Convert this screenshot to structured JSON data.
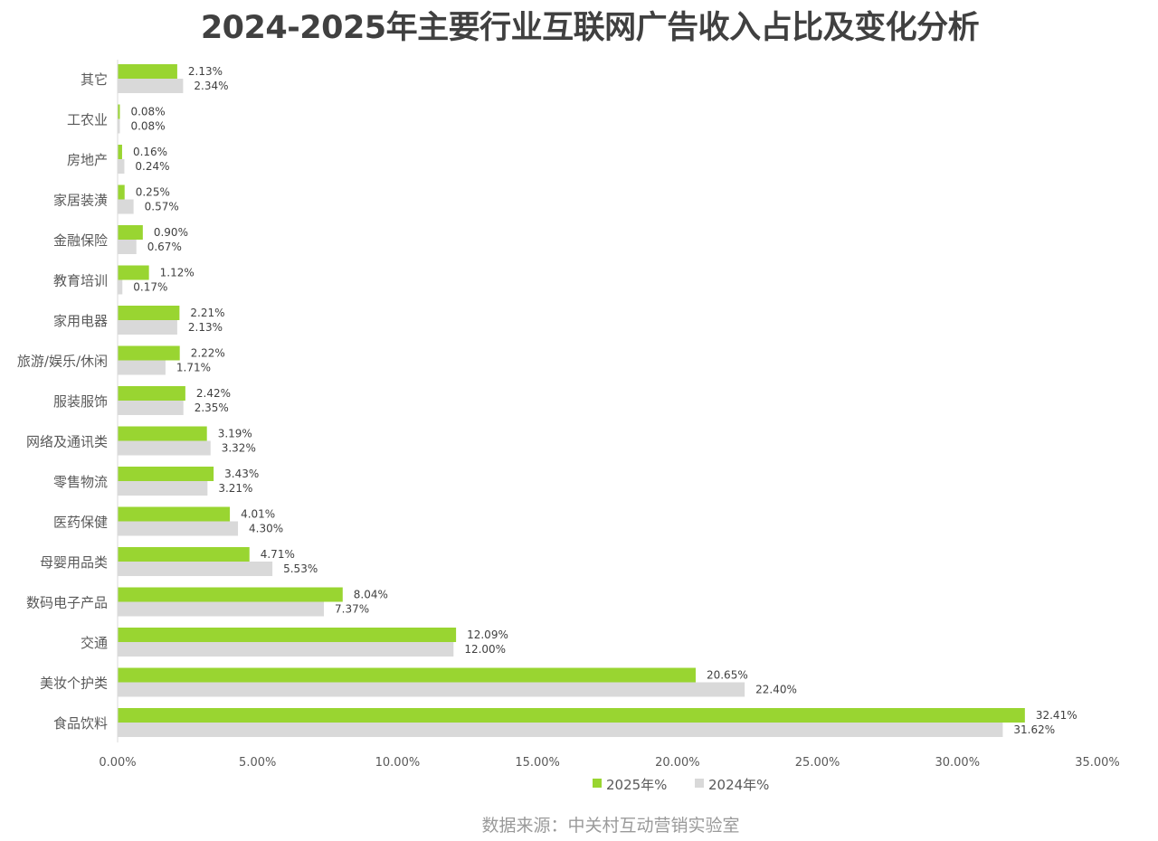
{
  "chart_data": {
    "type": "bar",
    "orientation": "horizontal",
    "title": "2024-2025年主要行业互联网广告收入占比及变化分析",
    "categories": [
      "其它",
      "工农业",
      "房地产",
      "家居装潢",
      "金融保险",
      "教育培训",
      "家用电器",
      "旅游/娱乐/休闲",
      "服装服饰",
      "网络及通讯类",
      "零售物流",
      "医药保健",
      "母婴用品类",
      "数码电子产品",
      "交通",
      "美妆个护类",
      "食品饮料"
    ],
    "series": [
      {
        "name": "2025年%",
        "color": "#99d531",
        "values": [
          2.13,
          0.08,
          0.16,
          0.25,
          0.9,
          1.12,
          2.21,
          2.22,
          2.42,
          3.19,
          3.43,
          4.01,
          4.71,
          8.04,
          12.09,
          20.65,
          32.41
        ],
        "labels": [
          "2.13%",
          "0.08%",
          "0.16%",
          "0.25%",
          "0.90%",
          "1.12%",
          "2.21%",
          "2.22%",
          "2.42%",
          "3.19%",
          "3.43%",
          "4.01%",
          "4.71%",
          "8.04%",
          "12.09%",
          "20.65%",
          "32.41%"
        ]
      },
      {
        "name": "2024年%",
        "color": "#d9d9d9",
        "values": [
          2.34,
          0.08,
          0.24,
          0.57,
          0.67,
          0.17,
          2.13,
          1.71,
          2.35,
          3.32,
          3.21,
          4.3,
          5.53,
          7.37,
          12.0,
          22.4,
          31.62
        ],
        "labels": [
          "2.34%",
          "0.08%",
          "0.24%",
          "0.57%",
          "0.67%",
          "0.17%",
          "2.13%",
          "1.71%",
          "2.35%",
          "3.32%",
          "3.21%",
          "4.30%",
          "5.53%",
          "7.37%",
          "12.00%",
          "22.40%",
          "31.62%"
        ]
      }
    ],
    "xlim": [
      0,
      35
    ],
    "xticks": [
      "0.00%",
      "5.00%",
      "10.00%",
      "15.00%",
      "20.00%",
      "25.00%",
      "30.00%",
      "35.00%"
    ],
    "grid": false,
    "legend_position": "bottom"
  },
  "source": "数据来源：中关村互动营销实验室"
}
